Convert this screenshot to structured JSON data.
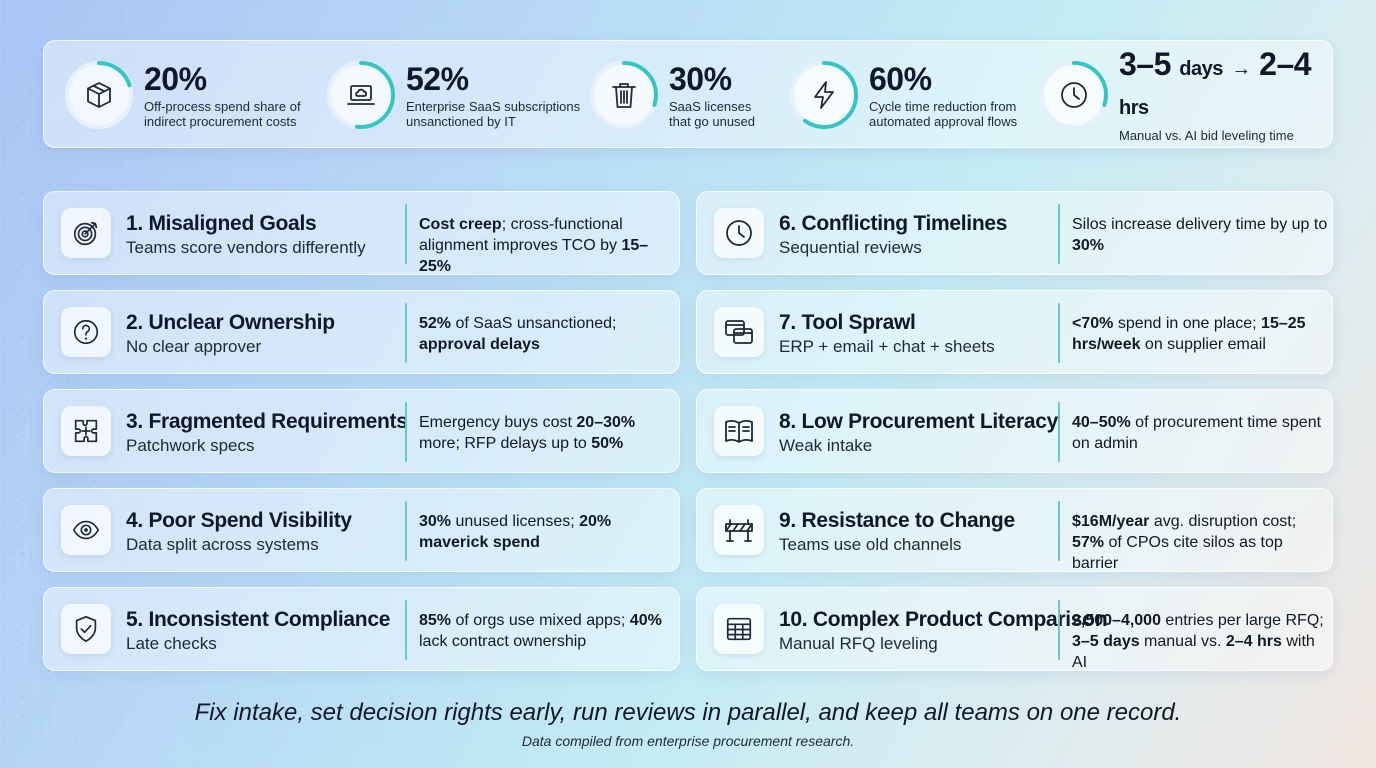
{
  "stats": [
    {
      "value": "20%",
      "unit": "",
      "desc": "Off-process spend share of\nindirect procurement costs",
      "icon": "box-icon",
      "fill": 0.2
    },
    {
      "value": "52%",
      "unit": "",
      "desc": "Enterprise SaaS subscriptions\nunsanctioned by IT",
      "icon": "laptop-cloud-icon",
      "fill": 0.52
    },
    {
      "value": "30%",
      "unit": "",
      "desc": "SaaS licenses\nthat go unused",
      "icon": "trash-icon",
      "fill": 0.3
    },
    {
      "value": "60%",
      "unit": "",
      "desc": "Cycle time reduction from\nautomated approval flows",
      "icon": "lightning-icon",
      "fill": 0.6
    },
    {
      "value_a": "3–5",
      "unit_a": "days",
      "arrow": "→",
      "value_b": "2–4",
      "unit_b": "hrs",
      "desc": "Manual vs. AI bid leveling time",
      "icon": "clock-icon",
      "fill": 0.3
    }
  ],
  "cards": [
    {
      "title": "1. Misaligned Goals",
      "sub": "Teams score vendors differently",
      "icon": "target-icon",
      "impact": [
        {
          "t": "Cost creep",
          "b": true
        },
        {
          "t": "; cross-functional alignment improves TCO by ",
          "b": false
        },
        {
          "t": "15–25%",
          "b": true
        }
      ]
    },
    {
      "title": "2. Unclear Ownership",
      "sub": "No clear approver",
      "icon": "question-icon",
      "impact": [
        {
          "t": "52%",
          "b": true
        },
        {
          "t": " of SaaS unsanctioned; ",
          "b": false
        },
        {
          "t": "approval delays",
          "b": true
        }
      ]
    },
    {
      "title": "3. Fragmented Requirements",
      "sub": "Patchwork specs",
      "icon": "puzzle-icon",
      "impact": [
        {
          "t": "Emergency buys cost ",
          "b": false
        },
        {
          "t": "20–30%",
          "b": true
        },
        {
          "t": " more; RFP delays up to ",
          "b": false
        },
        {
          "t": "50%",
          "b": true
        }
      ]
    },
    {
      "title": "4. Poor Spend Visibility",
      "sub": "Data split across systems",
      "icon": "eye-icon",
      "impact": [
        {
          "t": "30%",
          "b": true
        },
        {
          "t": " unused licenses; ",
          "b": false
        },
        {
          "t": "20% maverick spend",
          "b": true
        }
      ]
    },
    {
      "title": "5. Inconsistent Compliance",
      "sub": "Late checks",
      "icon": "shield-check-icon",
      "impact": [
        {
          "t": "85%",
          "b": true
        },
        {
          "t": " of orgs use mixed apps; ",
          "b": false
        },
        {
          "t": "40%",
          "b": true
        },
        {
          "t": " lack contract ownership",
          "b": false
        }
      ]
    },
    {
      "title": "6. Conflicting Timelines",
      "sub": "Sequential reviews",
      "icon": "clock-icon",
      "impact": [
        {
          "t": "Silos increase delivery time by up to ",
          "b": false
        },
        {
          "t": "30%",
          "b": true
        }
      ]
    },
    {
      "title": "7. Tool Sprawl",
      "sub": "ERP + email + chat + sheets",
      "icon": "windows-icon",
      "impact": [
        {
          "t": "<70%",
          "b": true
        },
        {
          "t": " spend in one place; ",
          "b": false
        },
        {
          "t": "15–25 hrs/week",
          "b": true
        },
        {
          "t": " on supplier email",
          "b": false
        }
      ]
    },
    {
      "title": "8. Low Procurement Literacy",
      "sub": "Weak intake",
      "icon": "book-icon",
      "impact": [
        {
          "t": "40–50%",
          "b": true
        },
        {
          "t": " of procurement time spent on admin",
          "b": false
        }
      ]
    },
    {
      "title": "9. Resistance to Change",
      "sub": "Teams use old channels",
      "icon": "barrier-icon",
      "impact": [
        {
          "t": "$16M/year",
          "b": true
        },
        {
          "t": " avg. disruption cost; ",
          "b": false
        },
        {
          "t": "57%",
          "b": true
        },
        {
          "t": " of CPOs cite silos as top barrier",
          "b": false
        }
      ]
    },
    {
      "title": "10. Complex Product Comparison",
      "sub": "Manual RFQ leveling",
      "icon": "table-icon",
      "impact": [
        {
          "t": "2,500–4,000",
          "b": true
        },
        {
          "t": " entries per large RFQ; ",
          "b": false
        },
        {
          "t": "3–5 days",
          "b": true
        },
        {
          "t": " manual vs. ",
          "b": false
        },
        {
          "t": "2–4 hrs",
          "b": true
        },
        {
          "t": " with AI",
          "b": false
        }
      ]
    }
  ],
  "footer": {
    "main": "Fix intake, set decision rights early, run reviews in parallel, and keep all teams on one record.",
    "sub": "Data compiled from enterprise procurement research."
  },
  "colors": {
    "accent_teal": "#35c6c4",
    "ring_track": "#e8f0fb",
    "text_dark": "#0f172a"
  }
}
